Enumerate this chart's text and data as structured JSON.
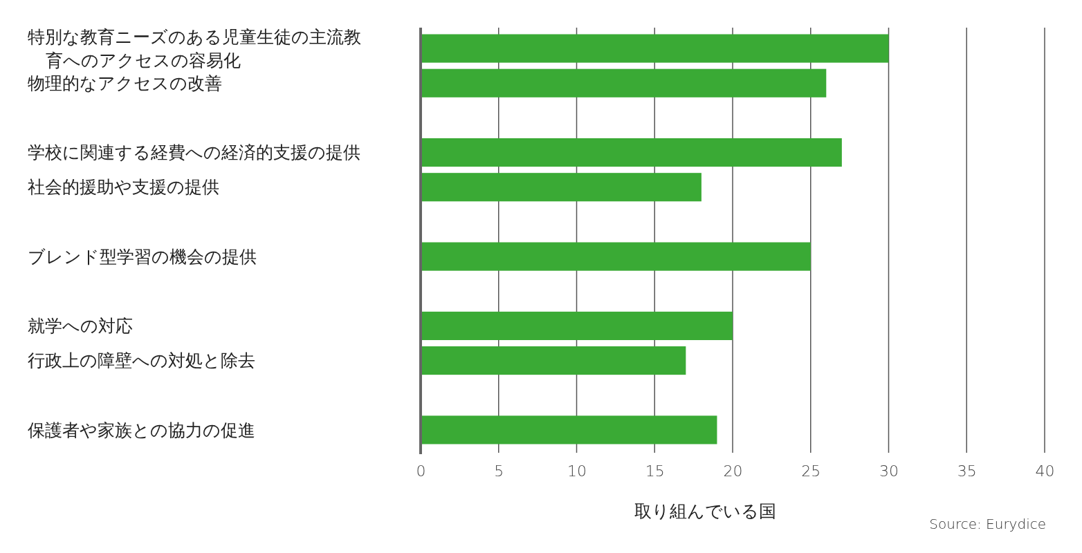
{
  "chart_data": {
    "type": "bar",
    "orientation": "horizontal",
    "xlabel": "取り組んでいる国",
    "categories": [
      "特別な教育ニーズのある児童生徒の主流教育へのアクセスの容易化",
      "物理的なアクセスの改善",
      null,
      "学校に関連する経費への経済的支援の提供",
      "社会的援助や支援の提供",
      null,
      "ブレンド型学習の機会の提供",
      null,
      "就学への対応",
      "行政上の障壁への対処と除去",
      null,
      "保護者や家族との協力の促進"
    ],
    "values": [
      30,
      26,
      null,
      27,
      18,
      null,
      25,
      null,
      20,
      17,
      null,
      19
    ],
    "color": "#3aaa35",
    "xlim": [
      0,
      40
    ],
    "xticks": [
      0,
      5,
      10,
      15,
      20,
      25,
      30,
      35,
      40
    ],
    "grid": "x",
    "annotations": [
      "Source: Eurydice"
    ]
  }
}
